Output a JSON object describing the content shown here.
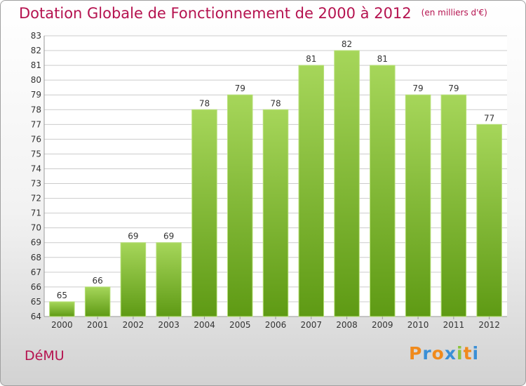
{
  "title": "Dotation Globale de Fonctionnement de 2000 à 2012",
  "unit": "(en milliers d'€)",
  "commune": "DéMU",
  "logo_text": "Proxiti",
  "colors": {
    "title": "#b5124f",
    "bar_top": "#a6d65a",
    "bar_bottom": "#5e9a14",
    "grid": "#cccccc"
  },
  "chart_data": {
    "type": "bar",
    "title": "Dotation Globale de Fonctionnement de 2000 à 2012",
    "xlabel": "",
    "ylabel": "",
    "categories": [
      "2000",
      "2001",
      "2002",
      "2003",
      "2004",
      "2005",
      "2006",
      "2007",
      "2008",
      "2009",
      "2010",
      "2011",
      "2012"
    ],
    "values": [
      65,
      66,
      69,
      69,
      78,
      79,
      78,
      81,
      82,
      81,
      79,
      79,
      77
    ],
    "ylim": [
      64,
      83
    ],
    "yticks": [
      64,
      65,
      66,
      67,
      68,
      69,
      70,
      71,
      72,
      73,
      74,
      75,
      76,
      77,
      78,
      79,
      80,
      81,
      82,
      83
    ],
    "grid": true,
    "data_labels": true
  }
}
